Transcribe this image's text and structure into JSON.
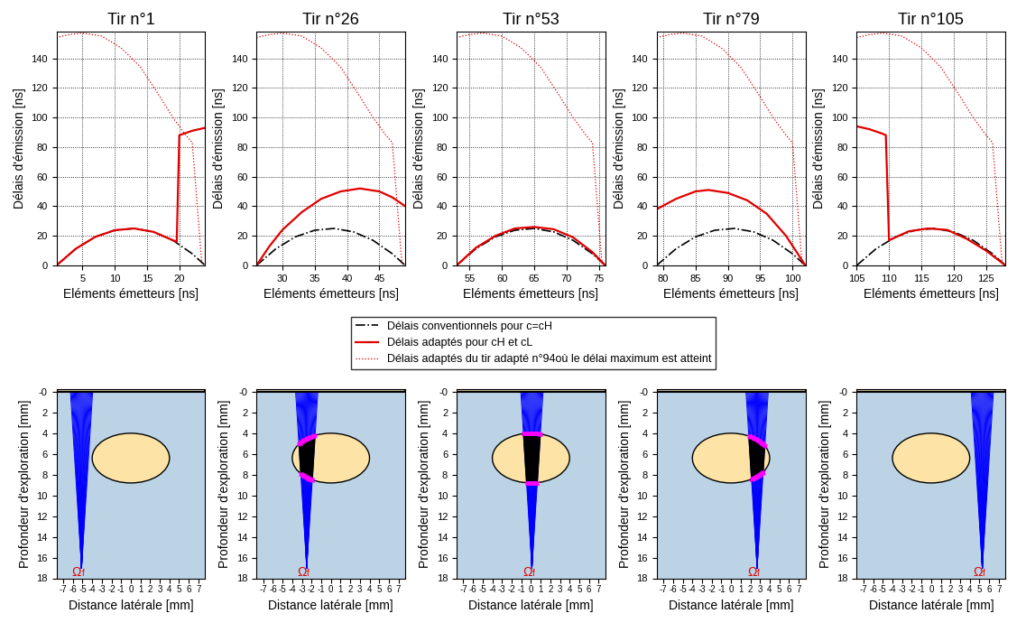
{
  "chart_data": [
    {
      "type": "line",
      "title": "Tir n°1",
      "xlabel": "Eléments émetteurs [ns]",
      "ylabel": "Délais d'émission [ns]",
      "xlim": [
        1,
        24
      ],
      "ylim": [
        0,
        158
      ],
      "xticks": [
        5,
        10,
        15,
        20
      ],
      "yticks": [
        0,
        20,
        40,
        60,
        80,
        100,
        120,
        140
      ],
      "grid": true,
      "legend": "center",
      "series": [
        {
          "name": "Délais conventionnels pour c=cH",
          "color": "#000000",
          "line_style": "dashdot",
          "x": [
            1,
            4,
            7,
            10,
            13,
            16,
            19,
            22,
            24
          ],
          "values": [
            0,
            11.3,
            19.3,
            23.8,
            25,
            22.7,
            17,
            7.9,
            0
          ]
        },
        {
          "name": "Délais adaptés pour cH et cL",
          "color": "#e00000",
          "line_style": "solid",
          "x": [
            1,
            4,
            7,
            10,
            13,
            16,
            19,
            19.6,
            20,
            22,
            24
          ],
          "values": [
            0,
            11.3,
            19.3,
            23.8,
            25,
            22.7,
            17,
            16,
            88,
            91,
            93
          ]
        },
        {
          "name": "Délais adaptés du tir adapté n°94où le délai maximum est atteint",
          "color": "#e00000",
          "line_style": "dotted",
          "x": [
            1,
            3,
            5,
            8,
            11,
            14,
            17,
            19,
            21,
            22,
            23.5
          ],
          "values": [
            154,
            156,
            157,
            155,
            147,
            134,
            114,
            100,
            88,
            83,
            0
          ]
        }
      ]
    },
    {
      "type": "line",
      "title": "Tir n°26",
      "xlabel": "Eléments émetteurs [ns]",
      "ylabel": "Délais d'émission [ns]",
      "xlim": [
        26,
        49
      ],
      "ylim": [
        0,
        158
      ],
      "xticks": [
        30,
        35,
        40,
        45
      ],
      "yticks": [
        0,
        20,
        40,
        60,
        80,
        100,
        120,
        140
      ],
      "grid": true,
      "series": [
        {
          "name": "Délais conventionnels pour c=cH",
          "color": "#000000",
          "line_style": "dashdot",
          "x": [
            26,
            29,
            32,
            35,
            38,
            41,
            44,
            47,
            49
          ],
          "values": [
            0,
            11.3,
            19.3,
            23.8,
            25,
            22.7,
            17,
            7.9,
            0
          ]
        },
        {
          "name": "Délais adaptés pour cH et cL",
          "color": "#e00000",
          "line_style": "solid",
          "x": [
            26,
            28,
            30,
            33,
            36,
            39,
            42,
            45,
            47,
            49
          ],
          "values": [
            0,
            13,
            24,
            36,
            45,
            50,
            52,
            50,
            46,
            40
          ]
        },
        {
          "name": "Délais adaptés du tir adapté n°94où le délai maximum est atteint",
          "color": "#e00000",
          "line_style": "dotted",
          "x": [
            26,
            28,
            30,
            33,
            36,
            39,
            42,
            44,
            46,
            47,
            48.5
          ],
          "values": [
            154,
            156,
            157,
            155,
            147,
            134,
            114,
            100,
            88,
            83,
            0
          ]
        }
      ]
    },
    {
      "type": "line",
      "title": "Tir n°53",
      "xlabel": "Eléments émetteurs [ns]",
      "ylabel": "Délais d'émission [ns]",
      "xlim": [
        53,
        76
      ],
      "ylim": [
        0,
        158
      ],
      "xticks": [
        55,
        60,
        65,
        70,
        75
      ],
      "yticks": [
        0,
        20,
        40,
        60,
        80,
        100,
        120,
        140
      ],
      "grid": true,
      "series": [
        {
          "name": "Délais conventionnels pour c=cH",
          "color": "#000000",
          "line_style": "dashdot",
          "x": [
            53,
            56,
            59,
            62,
            65,
            68,
            71,
            74,
            76
          ],
          "values": [
            0,
            11.3,
            19.3,
            23.8,
            25,
            22.7,
            17,
            7.9,
            0
          ]
        },
        {
          "name": "Délais adaptés pour cH et cL",
          "color": "#e00000",
          "line_style": "solid",
          "x": [
            53,
            56,
            59,
            62,
            65,
            68,
            71,
            74,
            76
          ],
          "values": [
            0,
            12,
            20,
            25,
            26,
            24.5,
            19,
            9,
            0
          ]
        },
        {
          "name": "Délais adaptés du tir adapté n°94où le délai maximum est atteint",
          "color": "#e00000",
          "line_style": "dotted",
          "x": [
            53,
            55,
            57,
            60,
            63,
            66,
            69,
            71,
            73,
            74,
            75.5
          ],
          "values": [
            154,
            156,
            157,
            155,
            147,
            134,
            114,
            100,
            88,
            83,
            0
          ]
        }
      ]
    },
    {
      "type": "line",
      "title": "Tir n°79",
      "xlabel": "Eléments émetteurs [ns]",
      "ylabel": "Délais d'émission [ns]",
      "xlim": [
        79,
        102
      ],
      "ylim": [
        0,
        158
      ],
      "xticks": [
        80,
        85,
        90,
        95,
        100
      ],
      "yticks": [
        0,
        20,
        40,
        60,
        80,
        100,
        120,
        140
      ],
      "grid": true,
      "series": [
        {
          "name": "Délais conventionnels pour c=cH",
          "color": "#000000",
          "line_style": "dashdot",
          "x": [
            79,
            82,
            85,
            88,
            91,
            94,
            97,
            100,
            102
          ],
          "values": [
            0,
            11.3,
            19.3,
            23.8,
            25,
            22.7,
            17,
            7.9,
            0
          ]
        },
        {
          "name": "Délais adaptés pour cH et cL",
          "color": "#e00000",
          "line_style": "solid",
          "x": [
            79,
            82,
            85,
            87,
            90,
            93,
            96,
            99,
            102
          ],
          "values": [
            38,
            45,
            50,
            51,
            49,
            44,
            35,
            20,
            0
          ]
        },
        {
          "name": "Délais adaptés du tir adapté n°94où le délai maximum est atteint",
          "color": "#e00000",
          "line_style": "dotted",
          "x": [
            79,
            81,
            83,
            86,
            89,
            92,
            95,
            97,
            99,
            100,
            101.5
          ],
          "values": [
            154,
            156,
            157,
            155,
            147,
            134,
            114,
            100,
            88,
            83,
            0
          ]
        }
      ]
    },
    {
      "type": "line",
      "title": "Tir n°105",
      "xlabel": "Eléments émetteurs [ns]",
      "ylabel": "Délais d'émission [ns]",
      "xlim": [
        105,
        128
      ],
      "ylim": [
        0,
        158
      ],
      "xticks": [
        105,
        110,
        115,
        120,
        125
      ],
      "yticks": [
        0,
        20,
        40,
        60,
        80,
        100,
        120,
        140
      ],
      "grid": true,
      "series": [
        {
          "name": "Délais conventionnels pour c=cH",
          "color": "#000000",
          "line_style": "dashdot",
          "x": [
            105,
            108,
            111,
            114,
            117,
            120,
            123,
            126,
            128
          ],
          "values": [
            0,
            11.3,
            19.3,
            23.8,
            25,
            22.7,
            17,
            7.9,
            0
          ]
        },
        {
          "name": "Délais adaptés pour cH et cL",
          "color": "#e00000",
          "line_style": "solid",
          "x": [
            105,
            107,
            109,
            109.5,
            110,
            113,
            116,
            119,
            122,
            125,
            128
          ],
          "values": [
            94,
            92,
            89,
            88,
            17,
            23,
            25,
            24,
            18,
            10,
            0
          ]
        },
        {
          "name": "Délais adaptés du tir adapté n°94où le délai maximum est atteint",
          "color": "#e00000",
          "line_style": "dotted",
          "x": [
            105,
            107,
            109,
            112,
            115,
            118,
            121,
            123,
            125,
            126,
            127.5
          ],
          "values": [
            154,
            156,
            157,
            155,
            147,
            134,
            114,
            100,
            88,
            83,
            0
          ]
        }
      ]
    },
    {
      "type": "raytrace",
      "xlabel": "Distance latérale [mm]",
      "ylabel": "Profondeur d'exploration [mm]",
      "xlim": [
        -7.7,
        7.7
      ],
      "ylim": [
        18,
        -0.3
      ],
      "xticks": [
        -7,
        -6,
        -5,
        -4,
        -3,
        -2,
        -1,
        0,
        1,
        2,
        3,
        4,
        5,
        6,
        7
      ],
      "yticks": [
        {
          "value": 0,
          "label": "-0"
        },
        2,
        4,
        6,
        8,
        10,
        12,
        14,
        16,
        18
      ],
      "grid": false,
      "inclusion": {
        "center": [
          0,
          6.4
        ],
        "width": 8,
        "height": 4.8
      },
      "aperture": [
        -6.25,
        -3.95
      ],
      "focus": {
        "x": -5.1,
        "y": 17
      },
      "focus_label": "Ω",
      "focus_subscript": "f"
    },
    {
      "type": "raytrace",
      "xlabel": "Distance latérale [mm]",
      "ylabel": "Profondeur d'exploration [mm]",
      "xlim": [
        -7.7,
        7.7
      ],
      "ylim": [
        18,
        -0.3
      ],
      "xticks": [
        -7,
        -6,
        -5,
        -4,
        -3,
        -2,
        -1,
        0,
        1,
        2,
        3,
        4,
        5,
        6,
        7
      ],
      "yticks": [
        {
          "value": 0,
          "label": "-0"
        },
        2,
        4,
        6,
        8,
        10,
        12,
        14,
        16,
        18
      ],
      "grid": false,
      "inclusion": {
        "center": [
          0,
          6.4
        ],
        "width": 8,
        "height": 4.8
      },
      "aperture": [
        -3.65,
        -1.35
      ],
      "focus": {
        "x": -2.5,
        "y": 17
      },
      "focus_label": "Ω",
      "focus_subscript": "f"
    },
    {
      "type": "raytrace",
      "xlabel": "Distance latérale [mm]",
      "ylabel": "Profondeur d'exploration [mm]",
      "xlim": [
        -7.7,
        7.7
      ],
      "ylim": [
        18,
        -0.3
      ],
      "xticks": [
        -7,
        -6,
        -5,
        -4,
        -3,
        -2,
        -1,
        0,
        1,
        2,
        3,
        4,
        5,
        6,
        7
      ],
      "yticks": [
        {
          "value": 0,
          "label": "-0"
        },
        2,
        4,
        6,
        8,
        10,
        12,
        14,
        16,
        18
      ],
      "grid": false,
      "inclusion": {
        "center": [
          0,
          6.4
        ],
        "width": 8,
        "height": 4.8
      },
      "aperture": [
        -1.05,
        1.25
      ],
      "focus": {
        "x": 0.1,
        "y": 17
      },
      "focus_label": "Ω",
      "focus_subscript": "f"
    },
    {
      "type": "raytrace",
      "xlabel": "Distance latérale [mm]",
      "ylabel": "Profondeur d'exploration [mm]",
      "xlim": [
        -7.7,
        7.7
      ],
      "ylim": [
        18,
        -0.3
      ],
      "xticks": [
        -7,
        -6,
        -5,
        -4,
        -3,
        -2,
        -1,
        0,
        1,
        2,
        3,
        4,
        5,
        6,
        7
      ],
      "yticks": [
        {
          "value": 0,
          "label": "-0"
        },
        2,
        4,
        6,
        8,
        10,
        12,
        14,
        16,
        18
      ],
      "grid": false,
      "inclusion": {
        "center": [
          0,
          6.4
        ],
        "width": 8,
        "height": 4.8
      },
      "aperture": [
        1.55,
        3.85
      ],
      "focus": {
        "x": 2.7,
        "y": 17
      },
      "focus_label": "Ω",
      "focus_subscript": "f"
    },
    {
      "type": "raytrace",
      "xlabel": "Distance latérale [mm]",
      "ylabel": "Profondeur d'exploration [mm]",
      "xlim": [
        -7.7,
        7.7
      ],
      "ylim": [
        18,
        -0.3
      ],
      "xticks": [
        -7,
        -6,
        -5,
        -4,
        -3,
        -2,
        -1,
        0,
        1,
        2,
        3,
        4,
        5,
        6,
        7
      ],
      "yticks": [
        {
          "value": 0,
          "label": "-0"
        },
        2,
        4,
        6,
        8,
        10,
        12,
        14,
        16,
        18
      ],
      "grid": false,
      "inclusion": {
        "center": [
          0,
          6.4
        ],
        "width": 8,
        "height": 4.8
      },
      "aperture": [
        4.15,
        6.45
      ],
      "focus": {
        "x": 5.3,
        "y": 17
      },
      "focus_label": "Ω",
      "focus_subscript": "f"
    }
  ]
}
